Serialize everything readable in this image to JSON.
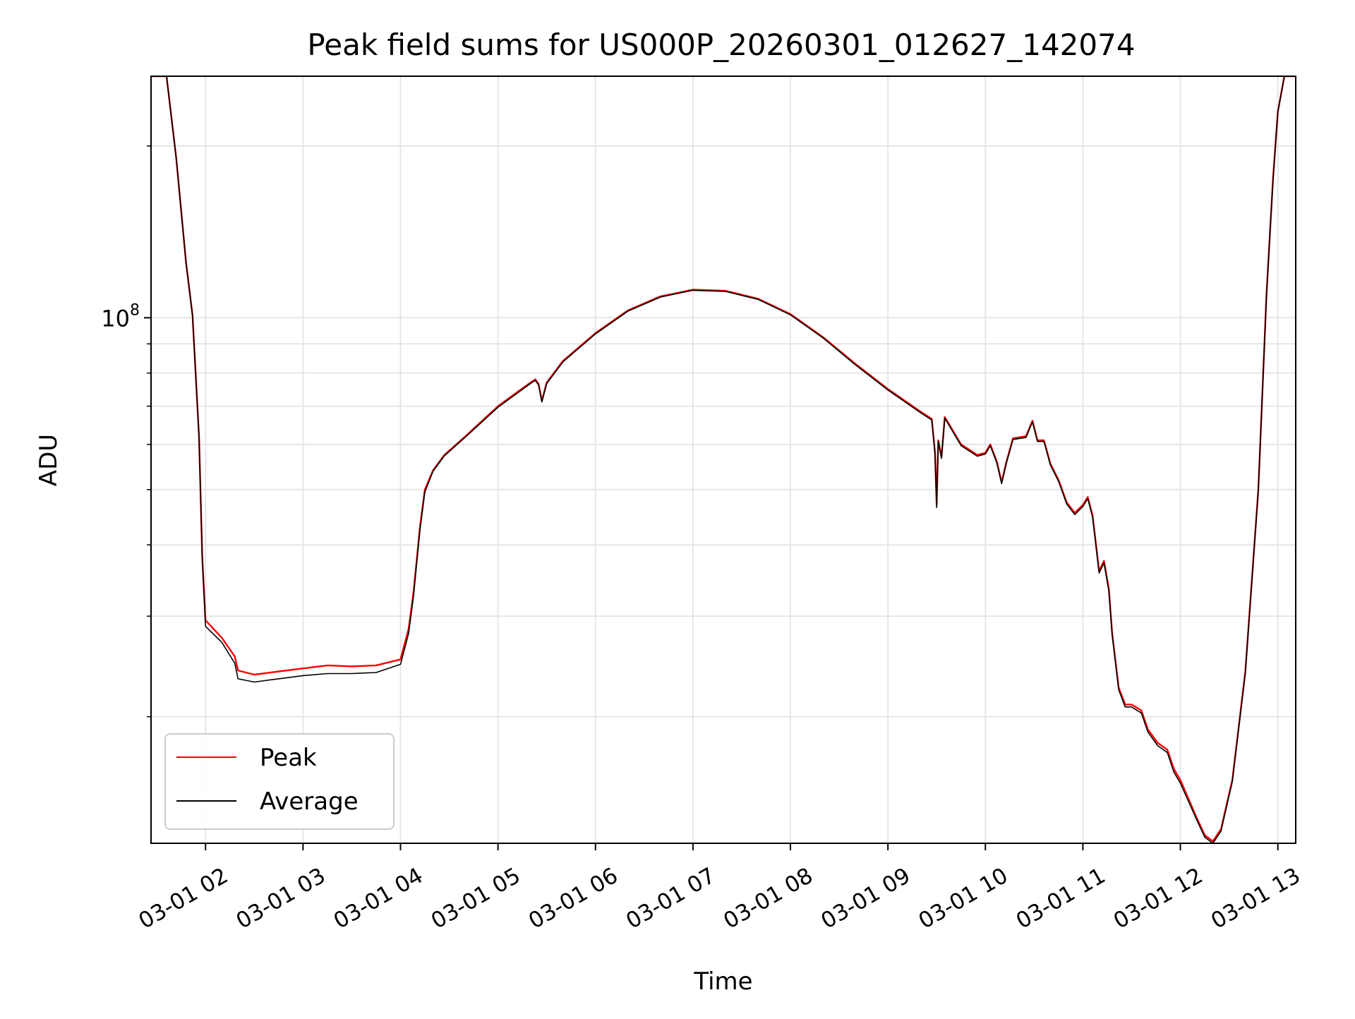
{
  "chart_data": {
    "type": "line",
    "title": "Peak field sums for US000P_20260301_012627_142074",
    "xlabel": "Time",
    "ylabel": "ADU",
    "y_scale": "log",
    "ylim": [
      12000000,
      265000000
    ],
    "y_major_ticks": [
      {
        "value": 100000000,
        "base": "10",
        "exp": "8"
      }
    ],
    "y_minor_ticks": [
      20000000,
      30000000,
      40000000,
      50000000,
      60000000,
      70000000,
      80000000,
      90000000,
      200000000
    ],
    "xlim": [
      "2026-03-01 01:26:27",
      "2026-03-01 13:11:00"
    ],
    "x_ticks": [
      {
        "t": "2026-03-01 02:00",
        "label": "03-01 02"
      },
      {
        "t": "2026-03-01 03:00",
        "label": "03-01 03"
      },
      {
        "t": "2026-03-01 04:00",
        "label": "03-01 04"
      },
      {
        "t": "2026-03-01 05:00",
        "label": "03-01 05"
      },
      {
        "t": "2026-03-01 06:00",
        "label": "03-01 06"
      },
      {
        "t": "2026-03-01 07:00",
        "label": "03-01 07"
      },
      {
        "t": "2026-03-01 08:00",
        "label": "03-01 08"
      },
      {
        "t": "2026-03-01 09:00",
        "label": "03-01 09"
      },
      {
        "t": "2026-03-01 10:00",
        "label": "03-01 10"
      },
      {
        "t": "2026-03-01 11:00",
        "label": "03-01 11"
      },
      {
        "t": "2026-03-01 12:00",
        "label": "03-01 12"
      },
      {
        "t": "2026-03-01 13:00",
        "label": "03-01 13"
      }
    ],
    "grid": true,
    "legend_position": "lower-left",
    "series": [
      {
        "name": "Peak",
        "color": "#ff0000",
        "points": [
          [
            "2026-03-01 01:26:27",
            265000000
          ],
          [
            "2026-03-01 01:36:00",
            265000000
          ],
          [
            "2026-03-01 01:42:00",
            190000000
          ],
          [
            "2026-03-01 01:48:00",
            125000000
          ],
          [
            "2026-03-01 01:52:00",
            101000000
          ],
          [
            "2026-03-01 01:56:00",
            62000000
          ],
          [
            "2026-03-01 01:58:00",
            38000000
          ],
          [
            "2026-03-01 02:00:00",
            29500000
          ],
          [
            "2026-03-01 02:10:00",
            27500000
          ],
          [
            "2026-03-01 02:18:00",
            25500000
          ],
          [
            "2026-03-01 02:20:00",
            24100000
          ],
          [
            "2026-03-01 02:30:00",
            23700000
          ],
          [
            "2026-03-01 02:45:00",
            24000000
          ],
          [
            "2026-03-01 03:00:00",
            24300000
          ],
          [
            "2026-03-01 03:15:00",
            24600000
          ],
          [
            "2026-03-01 03:30:00",
            24500000
          ],
          [
            "2026-03-01 03:45:00",
            24600000
          ],
          [
            "2026-03-01 04:00:00",
            25200000
          ],
          [
            "2026-03-01 04:05:00",
            28500000
          ],
          [
            "2026-03-01 04:08:00",
            33000000
          ],
          [
            "2026-03-01 04:12:00",
            43000000
          ],
          [
            "2026-03-01 04:15:00",
            50000000
          ],
          [
            "2026-03-01 04:20:00",
            54000000
          ],
          [
            "2026-03-01 04:27:00",
            57500000
          ],
          [
            "2026-03-01 04:40:00",
            62000000
          ],
          [
            "2026-03-01 05:00:00",
            70000000
          ],
          [
            "2026-03-01 05:20:00",
            77000000
          ],
          [
            "2026-03-01 05:23:00",
            78000000
          ],
          [
            "2026-03-01 05:25:00",
            76500000
          ],
          [
            "2026-03-01 05:27:00",
            71500000
          ],
          [
            "2026-03-01 05:30:00",
            77000000
          ],
          [
            "2026-03-01 05:40:00",
            84000000
          ],
          [
            "2026-03-01 06:00:00",
            94000000
          ],
          [
            "2026-03-01 06:20:00",
            103000000
          ],
          [
            "2026-03-01 06:40:00",
            109000000
          ],
          [
            "2026-03-01 07:00:00",
            112000000
          ],
          [
            "2026-03-01 07:20:00",
            111500000
          ],
          [
            "2026-03-01 07:40:00",
            108000000
          ],
          [
            "2026-03-01 08:00:00",
            101500000
          ],
          [
            "2026-03-01 08:20:00",
            92500000
          ],
          [
            "2026-03-01 08:40:00",
            83000000
          ],
          [
            "2026-03-01 09:00:00",
            75000000
          ],
          [
            "2026-03-01 09:20:00",
            68500000
          ],
          [
            "2026-03-01 09:27:00",
            66500000
          ],
          [
            "2026-03-01 09:29:00",
            58000000
          ],
          [
            "2026-03-01 09:30:00",
            47000000
          ],
          [
            "2026-03-01 09:31:00",
            61000000
          ],
          [
            "2026-03-01 09:33:00",
            57000000
          ],
          [
            "2026-03-01 09:35:00",
            67000000
          ],
          [
            "2026-03-01 09:45:00",
            60000000
          ],
          [
            "2026-03-01 09:55:00",
            57500000
          ],
          [
            "2026-03-01 10:00:00",
            58000000
          ],
          [
            "2026-03-01 10:03:00",
            60000000
          ],
          [
            "2026-03-01 10:07:00",
            56000000
          ],
          [
            "2026-03-01 10:10:00",
            51500000
          ],
          [
            "2026-03-01 10:13:00",
            56000000
          ],
          [
            "2026-03-01 10:17:00",
            61500000
          ],
          [
            "2026-03-01 10:25:00",
            62000000
          ],
          [
            "2026-03-01 10:29:00",
            66000000
          ],
          [
            "2026-03-01 10:32:00",
            61000000
          ],
          [
            "2026-03-01 10:36:00",
            61000000
          ],
          [
            "2026-03-01 10:40:00",
            55500000
          ],
          [
            "2026-03-01 10:45:00",
            52000000
          ],
          [
            "2026-03-01 10:50:00",
            47500000
          ],
          [
            "2026-03-01 10:55:00",
            45500000
          ],
          [
            "2026-03-01 11:00:00",
            47000000
          ],
          [
            "2026-03-01 11:03:00",
            48500000
          ],
          [
            "2026-03-01 11:06:00",
            45000000
          ],
          [
            "2026-03-01 11:10:00",
            36000000
          ],
          [
            "2026-03-01 11:13:00",
            37500000
          ],
          [
            "2026-03-01 11:16:00",
            33500000
          ],
          [
            "2026-03-01 11:18:00",
            28000000
          ],
          [
            "2026-03-01 11:22:00",
            22500000
          ],
          [
            "2026-03-01 11:26:00",
            21000000
          ],
          [
            "2026-03-01 11:30:00",
            21000000
          ],
          [
            "2026-03-01 11:36:00",
            20500000
          ],
          [
            "2026-03-01 11:40:00",
            19000000
          ],
          [
            "2026-03-01 11:46:00",
            18000000
          ],
          [
            "2026-03-01 11:52:00",
            17500000
          ],
          [
            "2026-03-01 11:56:00",
            16200000
          ],
          [
            "2026-03-01 12:00:00",
            15500000
          ],
          [
            "2026-03-01 12:10:00",
            13300000
          ],
          [
            "2026-03-01 12:15:00",
            12400000
          ],
          [
            "2026-03-01 12:20:00",
            12100000
          ],
          [
            "2026-03-01 12:25:00",
            12700000
          ],
          [
            "2026-03-01 12:32:00",
            15500000
          ],
          [
            "2026-03-01 12:40:00",
            24000000
          ],
          [
            "2026-03-01 12:48:00",
            50000000
          ],
          [
            "2026-03-01 12:53:00",
            110000000
          ],
          [
            "2026-03-01 12:57:00",
            175000000
          ],
          [
            "2026-03-01 13:00:00",
            230000000
          ],
          [
            "2026-03-01 13:04:00",
            265000000
          ],
          [
            "2026-03-01 13:11:00",
            265000000
          ]
        ]
      },
      {
        "name": "Average",
        "color": "#000000",
        "points": [
          [
            "2026-03-01 01:26:27",
            265000000
          ],
          [
            "2026-03-01 01:36:00",
            265000000
          ],
          [
            "2026-03-01 01:42:00",
            190000000
          ],
          [
            "2026-03-01 01:48:00",
            125000000
          ],
          [
            "2026-03-01 01:52:00",
            101000000
          ],
          [
            "2026-03-01 01:56:00",
            62000000
          ],
          [
            "2026-03-01 01:58:00",
            38000000
          ],
          [
            "2026-03-01 02:00:00",
            28800000
          ],
          [
            "2026-03-01 02:10:00",
            27000000
          ],
          [
            "2026-03-01 02:18:00",
            24800000
          ],
          [
            "2026-03-01 02:20:00",
            23300000
          ],
          [
            "2026-03-01 02:30:00",
            23000000
          ],
          [
            "2026-03-01 02:45:00",
            23300000
          ],
          [
            "2026-03-01 03:00:00",
            23600000
          ],
          [
            "2026-03-01 03:15:00",
            23800000
          ],
          [
            "2026-03-01 03:30:00",
            23800000
          ],
          [
            "2026-03-01 03:45:00",
            23900000
          ],
          [
            "2026-03-01 04:00:00",
            24700000
          ],
          [
            "2026-03-01 04:05:00",
            28000000
          ],
          [
            "2026-03-01 04:08:00",
            32500000
          ],
          [
            "2026-03-01 04:12:00",
            42500000
          ],
          [
            "2026-03-01 04:15:00",
            49500000
          ],
          [
            "2026-03-01 04:20:00",
            53800000
          ],
          [
            "2026-03-01 04:27:00",
            57300000
          ],
          [
            "2026-03-01 04:40:00",
            61800000
          ],
          [
            "2026-03-01 05:00:00",
            69700000
          ],
          [
            "2026-03-01 05:20:00",
            76700000
          ],
          [
            "2026-03-01 05:23:00",
            77700000
          ],
          [
            "2026-03-01 05:25:00",
            76200000
          ],
          [
            "2026-03-01 05:27:00",
            71200000
          ],
          [
            "2026-03-01 05:30:00",
            76700000
          ],
          [
            "2026-03-01 05:40:00",
            83700000
          ],
          [
            "2026-03-01 06:00:00",
            93700000
          ],
          [
            "2026-03-01 06:20:00",
            102700000
          ],
          [
            "2026-03-01 06:40:00",
            108700000
          ],
          [
            "2026-03-01 07:00:00",
            111700000
          ],
          [
            "2026-03-01 07:20:00",
            111200000
          ],
          [
            "2026-03-01 07:40:00",
            107700000
          ],
          [
            "2026-03-01 08:00:00",
            101200000
          ],
          [
            "2026-03-01 08:20:00",
            92200000
          ],
          [
            "2026-03-01 08:40:00",
            82700000
          ],
          [
            "2026-03-01 09:00:00",
            74700000
          ],
          [
            "2026-03-01 09:20:00",
            68200000
          ],
          [
            "2026-03-01 09:27:00",
            66200000
          ],
          [
            "2026-03-01 09:29:00",
            57700000
          ],
          [
            "2026-03-01 09:30:00",
            46500000
          ],
          [
            "2026-03-01 09:31:00",
            60700000
          ],
          [
            "2026-03-01 09:33:00",
            56700000
          ],
          [
            "2026-03-01 09:35:00",
            66700000
          ],
          [
            "2026-03-01 09:45:00",
            59700000
          ],
          [
            "2026-03-01 09:55:00",
            57200000
          ],
          [
            "2026-03-01 10:00:00",
            57700000
          ],
          [
            "2026-03-01 10:03:00",
            59700000
          ],
          [
            "2026-03-01 10:07:00",
            55700000
          ],
          [
            "2026-03-01 10:10:00",
            51200000
          ],
          [
            "2026-03-01 10:13:00",
            55700000
          ],
          [
            "2026-03-01 10:17:00",
            61200000
          ],
          [
            "2026-03-01 10:25:00",
            61700000
          ],
          [
            "2026-03-01 10:29:00",
            65700000
          ],
          [
            "2026-03-01 10:32:00",
            60700000
          ],
          [
            "2026-03-01 10:36:00",
            60700000
          ],
          [
            "2026-03-01 10:40:00",
            55200000
          ],
          [
            "2026-03-01 10:45:00",
            51700000
          ],
          [
            "2026-03-01 10:50:00",
            47200000
          ],
          [
            "2026-03-01 10:55:00",
            45200000
          ],
          [
            "2026-03-01 11:00:00",
            46700000
          ],
          [
            "2026-03-01 11:03:00",
            48200000
          ],
          [
            "2026-03-01 11:06:00",
            44700000
          ],
          [
            "2026-03-01 11:10:00",
            35700000
          ],
          [
            "2026-03-01 11:13:00",
            37200000
          ],
          [
            "2026-03-01 11:16:00",
            33200000
          ],
          [
            "2026-03-01 11:18:00",
            27800000
          ],
          [
            "2026-03-01 11:22:00",
            22300000
          ],
          [
            "2026-03-01 11:26:00",
            20800000
          ],
          [
            "2026-03-01 11:30:00",
            20800000
          ],
          [
            "2026-03-01 11:36:00",
            20300000
          ],
          [
            "2026-03-01 11:40:00",
            18800000
          ],
          [
            "2026-03-01 11:46:00",
            17800000
          ],
          [
            "2026-03-01 11:52:00",
            17300000
          ],
          [
            "2026-03-01 11:56:00",
            16000000
          ],
          [
            "2026-03-01 12:00:00",
            15300000
          ],
          [
            "2026-03-01 12:10:00",
            13200000
          ],
          [
            "2026-03-01 12:15:00",
            12300000
          ],
          [
            "2026-03-01 12:20:00",
            12000000
          ],
          [
            "2026-03-01 12:25:00",
            12600000
          ],
          [
            "2026-03-01 12:32:00",
            15400000
          ],
          [
            "2026-03-01 12:40:00",
            23800000
          ],
          [
            "2026-03-01 12:48:00",
            49800000
          ],
          [
            "2026-03-01 12:53:00",
            109000000
          ],
          [
            "2026-03-01 12:57:00",
            174000000
          ],
          [
            "2026-03-01 13:00:00",
            229000000
          ],
          [
            "2026-03-01 13:04:00",
            265000000
          ],
          [
            "2026-03-01 13:11:00",
            265000000
          ]
        ]
      }
    ]
  }
}
